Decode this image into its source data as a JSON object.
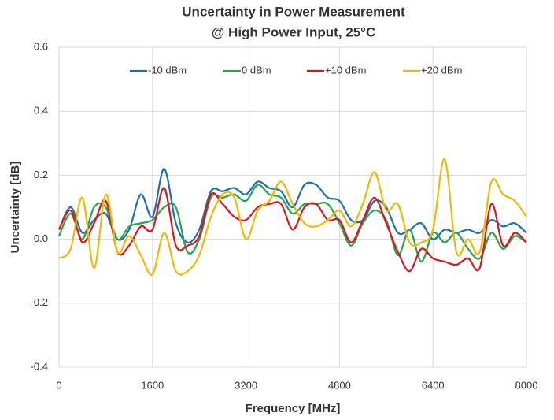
{
  "chart_data": {
    "type": "line",
    "title": "Uncertainty in Power Measurement",
    "subtitle": "@ High Power Input, 25°C",
    "x_label": "Frequency [MHz]",
    "y_label": "Uncertainty [dB]",
    "x": [
      0,
      200,
      400,
      600,
      800,
      1000,
      1200,
      1400,
      1600,
      1800,
      2000,
      2200,
      2400,
      2600,
      2800,
      3000,
      3200,
      3400,
      3600,
      3800,
      4000,
      4200,
      4400,
      4600,
      4800,
      5000,
      5200,
      5400,
      5600,
      5800,
      6000,
      6200,
      6400,
      6600,
      6800,
      7000,
      7200,
      7400,
      7600,
      7800,
      8000
    ],
    "series": [
      {
        "name": "-10 dBm",
        "color": "#1f6fb5",
        "values": [
          0.03,
          0.1,
          0.02,
          0.06,
          0.08,
          0.0,
          0.03,
          0.14,
          0.07,
          0.22,
          0.05,
          -0.01,
          0.03,
          0.15,
          0.15,
          0.16,
          0.14,
          0.18,
          0.16,
          0.15,
          0.1,
          0.17,
          0.17,
          0.13,
          0.12,
          0.06,
          0.06,
          0.12,
          0.1,
          0.02,
          0.03,
          0.05,
          0.0,
          0.03,
          0.02,
          0.03,
          0.02,
          0.06,
          0.04,
          0.05,
          0.02
        ]
      },
      {
        "name": "0 dBm",
        "color": "#22a84a",
        "values": [
          0.01,
          0.08,
          0.0,
          0.1,
          0.1,
          0.0,
          0.04,
          0.05,
          0.06,
          0.1,
          0.1,
          -0.04,
          0.0,
          0.13,
          0.13,
          0.14,
          0.12,
          0.17,
          0.14,
          0.13,
          0.08,
          0.11,
          0.11,
          0.11,
          0.05,
          -0.02,
          0.05,
          0.09,
          0.06,
          -0.05,
          0.03,
          -0.07,
          0.02,
          -0.01,
          0.02,
          -0.03,
          -0.06,
          0.02,
          -0.03,
          0.01,
          -0.01
        ]
      },
      {
        "name": "+10 dBm",
        "color": "#e3121b",
        "values": [
          0.03,
          0.09,
          -0.01,
          0.05,
          0.12,
          -0.04,
          -0.02,
          0.04,
          0.03,
          0.16,
          -0.02,
          -0.02,
          0.01,
          0.14,
          0.11,
          0.07,
          0.06,
          0.1,
          0.11,
          0.11,
          0.03,
          0.1,
          0.11,
          0.06,
          0.06,
          -0.01,
          0.06,
          0.13,
          0.05,
          -0.04,
          -0.1,
          -0.03,
          -0.06,
          -0.07,
          -0.08,
          -0.06,
          -0.09,
          0.11,
          -0.02,
          0.02,
          -0.01
        ]
      },
      {
        "name": "+20 dBm",
        "color": "#f5b800",
        "values": [
          -0.06,
          -0.03,
          0.13,
          -0.09,
          0.14,
          -0.04,
          0.01,
          -0.05,
          -0.11,
          0.02,
          -0.1,
          -0.1,
          -0.05,
          0.07,
          0.14,
          0.13,
          0.0,
          0.09,
          0.12,
          0.18,
          0.11,
          0.05,
          0.04,
          0.06,
          0.09,
          0.04,
          0.11,
          0.21,
          0.09,
          0.11,
          -0.01,
          -0.01,
          0.03,
          0.25,
          -0.04,
          0.0,
          -0.04,
          0.18,
          0.14,
          0.12,
          0.07
        ]
      }
    ],
    "xlim": [
      0,
      8000
    ],
    "xticks": [
      0,
      1600,
      3200,
      4800,
      6400,
      8000
    ],
    "ylim": [
      -0.4,
      0.6
    ],
    "yticks": [
      -0.4,
      -0.2,
      {
        "value": 0,
        "label": "0.0"
      },
      0.2,
      0.4,
      0.6
    ],
    "grid": true,
    "legend": "top"
  }
}
